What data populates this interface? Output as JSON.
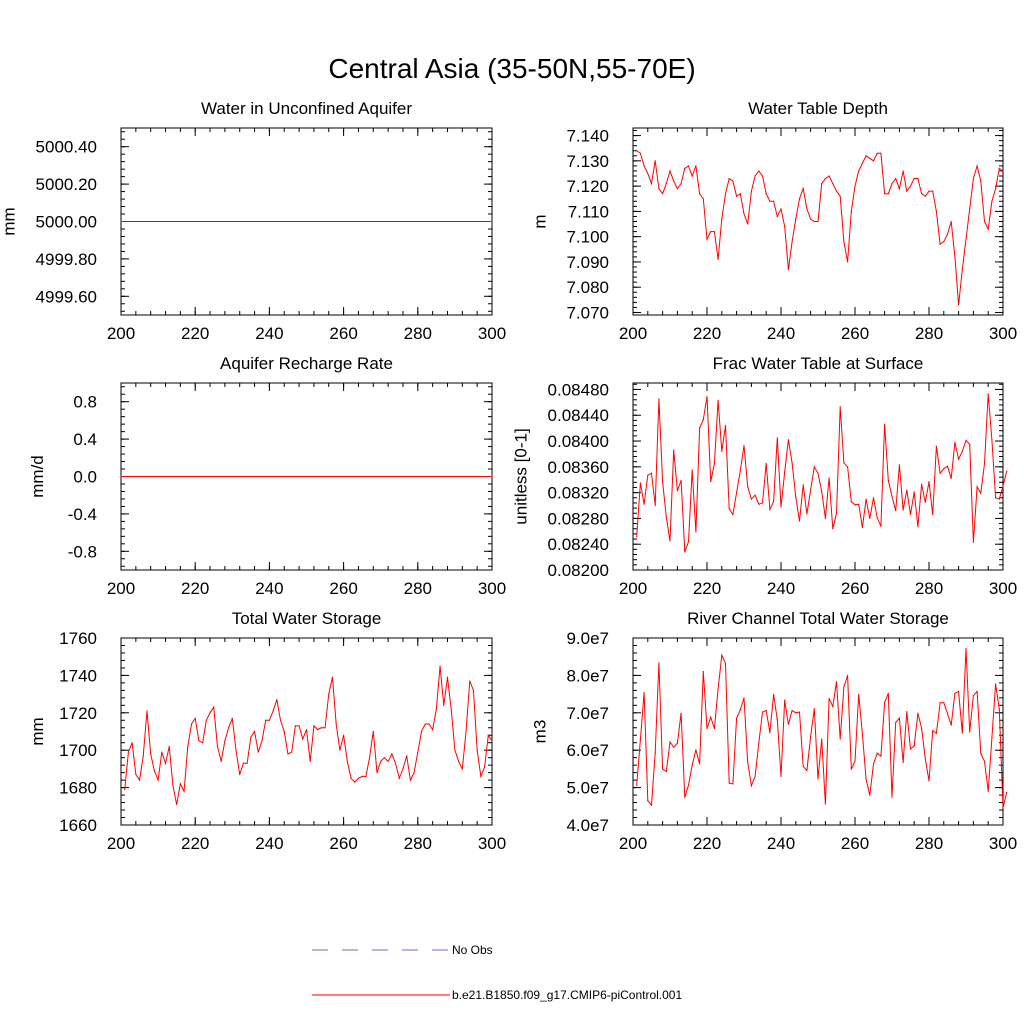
{
  "title": "Central Asia (35-50N,55-70E)",
  "legend": {
    "items": [
      {
        "label": "No Obs",
        "style": "dashed",
        "color": "#6a6ad8"
      },
      {
        "label": "b.e21.B1850.f09_g17.CMIP6-piControl.001",
        "style": "solid",
        "color": "#ff0000"
      }
    ]
  },
  "chart_data": [
    {
      "type": "line",
      "title": "Water in Unconfined Aquifer",
      "ylabel": "mm",
      "xlabel": "",
      "xlim": [
        200,
        300
      ],
      "ylim": [
        4999.5,
        5000.5
      ],
      "xticks": [
        200,
        220,
        240,
        260,
        280,
        300
      ],
      "xtick_labels": [
        "200",
        "220",
        "240",
        "260",
        "280",
        "300"
      ],
      "yticks": [
        4999.6,
        4999.8,
        5000.0,
        5000.2,
        5000.4
      ],
      "ytick_labels": [
        "4999.60",
        "4999.80",
        "5000.00",
        "5000.20",
        "5000.40"
      ],
      "y_minor_step": 0.04,
      "grid": false,
      "series": [
        {
          "name": "b.e21.B1850.f09_g17.CMIP6-piControl.001",
          "color": "#ff0000",
          "x": [
            200,
            300
          ],
          "values": [
            5000.0,
            5000.0
          ]
        }
      ]
    },
    {
      "type": "line",
      "title": "Water Table Depth",
      "ylabel": "m",
      "xlabel": "",
      "xlim": [
        200,
        300
      ],
      "ylim": [
        7.069,
        7.143
      ],
      "xticks": [
        200,
        220,
        240,
        260,
        280,
        300
      ],
      "xtick_labels": [
        "200",
        "220",
        "240",
        "260",
        "280",
        "300"
      ],
      "yticks": [
        7.07,
        7.08,
        7.09,
        7.1,
        7.11,
        7.12,
        7.13,
        7.14
      ],
      "ytick_labels": [
        "7.070",
        "7.080",
        "7.090",
        "7.100",
        "7.110",
        "7.120",
        "7.130",
        "7.140"
      ],
      "y_minor_step": 0.002,
      "grid": false,
      "series": [
        {
          "name": "b.e21.B1850.f09_g17.CMIP6-piControl.001",
          "color": "#ff0000",
          "x_start": 201,
          "x_step": 1,
          "values": [
            7.134,
            7.133,
            7.128,
            7.125,
            7.121,
            7.13,
            7.119,
            7.117,
            7.121,
            7.126,
            7.122,
            7.119,
            7.121,
            7.127,
            7.128,
            7.124,
            7.128,
            7.117,
            7.115,
            7.099,
            7.102,
            7.102,
            7.091,
            7.107,
            7.117,
            7.123,
            7.122,
            7.116,
            7.117,
            7.109,
            7.105,
            7.118,
            7.124,
            7.126,
            7.124,
            7.117,
            7.114,
            7.114,
            7.108,
            7.111,
            7.104,
            7.087,
            7.098,
            7.107,
            7.115,
            7.119,
            7.111,
            7.107,
            7.106,
            7.106,
            7.121,
            7.123,
            7.124,
            7.121,
            7.118,
            7.116,
            7.098,
            7.09,
            7.11,
            7.12,
            7.126,
            7.129,
            7.132,
            7.131,
            7.13,
            7.133,
            7.133,
            7.117,
            7.117,
            7.121,
            7.123,
            7.119,
            7.126,
            7.118,
            7.12,
            7.123,
            7.123,
            7.117,
            7.116,
            7.118,
            7.118,
            7.11,
            7.097,
            7.098,
            7.101,
            7.106,
            7.092,
            7.073,
            7.087,
            7.099,
            7.111,
            7.123,
            7.128,
            7.122,
            7.106,
            7.103,
            7.114,
            7.119,
            7.127,
            7.126
          ]
        }
      ]
    },
    {
      "type": "line",
      "title": "Aquifer Recharge Rate",
      "ylabel": "mm/d",
      "xlabel": "",
      "xlim": [
        200,
        300
      ],
      "ylim": [
        -1.0,
        1.0
      ],
      "xticks": [
        200,
        220,
        240,
        260,
        280,
        300
      ],
      "xtick_labels": [
        "200",
        "220",
        "240",
        "260",
        "280",
        "300"
      ],
      "yticks": [
        -0.8,
        -0.4,
        0.0,
        0.4,
        0.8
      ],
      "ytick_labels": [
        "-0.8",
        "-0.4",
        "0.0",
        "0.4",
        "0.8"
      ],
      "y_minor_step": 0.08,
      "grid": false,
      "series": [
        {
          "name": "b.e21.B1850.f09_g17.CMIP6-piControl.001",
          "color": "#ff0000",
          "x": [
            200,
            300
          ],
          "values": [
            0.0,
            0.0
          ]
        }
      ]
    },
    {
      "type": "line",
      "title": "Frac Water Table at Surface",
      "ylabel": "unitless [0-1]",
      "xlabel": "",
      "xlim": [
        200,
        300
      ],
      "ylim": [
        0.082,
        0.0849
      ],
      "xticks": [
        200,
        220,
        240,
        260,
        280,
        300
      ],
      "xtick_labels": [
        "200",
        "220",
        "240",
        "260",
        "280",
        "300"
      ],
      "yticks": [
        0.082,
        0.0824,
        0.0828,
        0.0832,
        0.0836,
        0.084,
        0.0844,
        0.0848
      ],
      "ytick_labels": [
        "0.08200",
        "0.08240",
        "0.08280",
        "0.08320",
        "0.08360",
        "0.08400",
        "0.08440",
        "0.08480"
      ],
      "y_minor_step": 8e-05,
      "grid": false,
      "series": [
        {
          "name": "b.e21.B1850.f09_g17.CMIP6-piControl.001",
          "color": "#ff0000",
          "x_start": 201,
          "x_step": 1,
          "values": [
            0.08252,
            0.08335,
            0.08302,
            0.08347,
            0.0835,
            0.083,
            0.08465,
            0.08337,
            0.08282,
            0.08245,
            0.08386,
            0.08323,
            0.08339,
            0.08228,
            0.08244,
            0.08355,
            0.08259,
            0.0842,
            0.08433,
            0.08469,
            0.08337,
            0.08365,
            0.08463,
            0.08384,
            0.08424,
            0.08295,
            0.08286,
            0.0832,
            0.08354,
            0.08393,
            0.08329,
            0.0831,
            0.08316,
            0.08302,
            0.08304,
            0.08365,
            0.08294,
            0.08306,
            0.08405,
            0.08298,
            0.08352,
            0.08402,
            0.08366,
            0.08313,
            0.08276,
            0.08332,
            0.08287,
            0.08324,
            0.0836,
            0.0835,
            0.08322,
            0.0828,
            0.08343,
            0.08264,
            0.08288,
            0.08453,
            0.08366,
            0.0836,
            0.08306,
            0.08301,
            0.08302,
            0.08266,
            0.0831,
            0.0828,
            0.08312,
            0.08281,
            0.08268,
            0.08426,
            0.08339,
            0.08314,
            0.08292,
            0.08363,
            0.08293,
            0.08324,
            0.08286,
            0.08321,
            0.08267,
            0.08333,
            0.08305,
            0.08337,
            0.08286,
            0.08392,
            0.0835,
            0.08357,
            0.08361,
            0.08342,
            0.08398,
            0.08372,
            0.08384,
            0.08401,
            0.08395,
            0.08243,
            0.08329,
            0.08319,
            0.08365,
            0.08473,
            0.08402,
            0.08312,
            0.0831,
            0.0833,
            0.08353
          ]
        }
      ]
    },
    {
      "type": "line",
      "title": "Total Water Storage",
      "ylabel": "mm",
      "xlabel": "",
      "xlim": [
        200,
        300
      ],
      "ylim": [
        1660,
        1760
      ],
      "xticks": [
        200,
        220,
        240,
        260,
        280,
        300
      ],
      "xtick_labels": [
        "200",
        "220",
        "240",
        "260",
        "280",
        "300"
      ],
      "yticks": [
        1660,
        1680,
        1700,
        1720,
        1740,
        1760
      ],
      "ytick_labels": [
        "1660",
        "1680",
        "1700",
        "1720",
        "1740",
        "1760"
      ],
      "y_minor_step": 4,
      "grid": false,
      "series": [
        {
          "name": "b.e21.B1850.f09_g17.CMIP6-piControl.001",
          "color": "#ff0000",
          "x_start": 201,
          "x_step": 1,
          "values": [
            1679,
            1699,
            1704,
            1687,
            1684,
            1697,
            1721,
            1698,
            1689,
            1684,
            1699,
            1693,
            1702,
            1681,
            1671,
            1682,
            1678,
            1702,
            1714,
            1717,
            1705,
            1704,
            1716,
            1720,
            1723,
            1702,
            1694,
            1705,
            1712,
            1717,
            1700,
            1687,
            1693,
            1693,
            1707,
            1710,
            1699,
            1705,
            1716,
            1716,
            1721,
            1727,
            1716,
            1710,
            1698,
            1699,
            1713,
            1713,
            1706,
            1711,
            1694,
            1713,
            1711,
            1712,
            1712,
            1730,
            1739,
            1714,
            1700,
            1708,
            1694,
            1685,
            1683,
            1685,
            1686,
            1686,
            1696,
            1710,
            1688,
            1694,
            1696,
            1694,
            1698,
            1693,
            1685,
            1690,
            1697,
            1684,
            1688,
            1699,
            1710,
            1714,
            1714,
            1711,
            1722,
            1745,
            1724,
            1739,
            1722,
            1700,
            1694,
            1690,
            1710,
            1737,
            1732,
            1700,
            1686,
            1691,
            1708,
            1705
          ]
        }
      ]
    },
    {
      "type": "line",
      "title": "River Channel Total Water Storage",
      "ylabel": "m3",
      "xlabel": "",
      "xlim": [
        200,
        300
      ],
      "ylim": [
        40000000,
        90000000
      ],
      "xticks": [
        200,
        220,
        240,
        260,
        280,
        300
      ],
      "xtick_labels": [
        "200",
        "220",
        "240",
        "260",
        "280",
        "300"
      ],
      "yticks": [
        40000000,
        50000000,
        60000000,
        70000000,
        80000000,
        90000000
      ],
      "ytick_labels": [
        "4.0e7",
        "5.0e7",
        "6.0e7",
        "7.0e7",
        "8.0e7",
        "9.0e7"
      ],
      "y_minor_step": 2000000,
      "grid": false,
      "series": [
        {
          "name": "b.e21.B1850.f09_g17.CMIP6-piControl.001",
          "color": "#ff0000",
          "x_start": 201,
          "x_step": 1,
          "values": [
            50600000,
            62800000,
            75400000,
            46500000,
            45300000,
            59300000,
            83300000,
            55000000,
            54300000,
            62200000,
            60800000,
            61900000,
            69900000,
            47400000,
            50600000,
            56000000,
            60100000,
            56300000,
            81000000,
            65800000,
            68800000,
            65800000,
            76400000,
            85400000,
            83200000,
            51200000,
            51000000,
            68600000,
            70800000,
            74000000,
            56800000,
            50500000,
            53000000,
            61900000,
            70200000,
            70600000,
            64700000,
            74900000,
            68200000,
            53000000,
            73400000,
            66900000,
            70600000,
            70000000,
            70200000,
            55700000,
            54600000,
            63600000,
            71100000,
            52300000,
            63000000,
            45600000,
            73800000,
            71700000,
            78300000,
            63000000,
            76900000,
            80000000,
            54900000,
            57100000,
            74900000,
            64400000,
            52200000,
            48000000,
            56300000,
            59200000,
            58400000,
            72700000,
            75200000,
            47400000,
            67400000,
            68600000,
            56700000,
            70300000,
            60300000,
            61200000,
            69900000,
            65900000,
            57700000,
            51800000,
            65200000,
            64500000,
            72700000,
            72700000,
            69800000,
            66700000,
            75200000,
            75700000,
            64600000,
            87200000,
            64900000,
            74600000,
            75700000,
            59100000,
            57000000,
            49000000,
            63300000,
            77700000,
            71000000,
            44600000,
            48700000
          ]
        }
      ]
    }
  ]
}
